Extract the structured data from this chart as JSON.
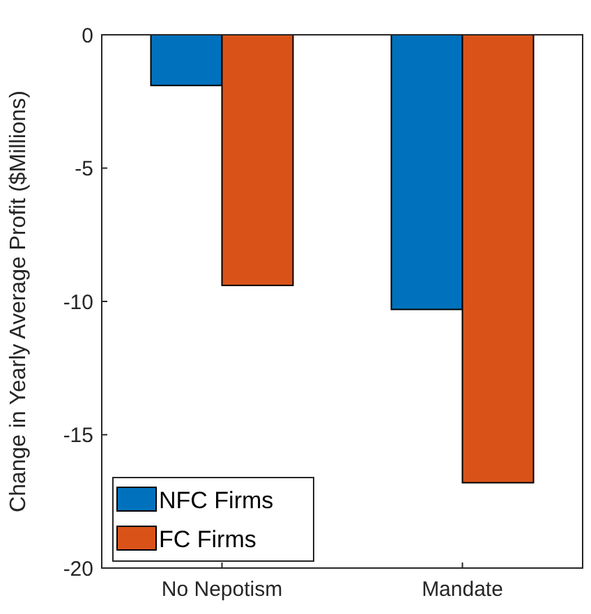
{
  "chart_data": {
    "type": "bar",
    "ylabel": "Change in Yearly Average Profit ($Millions)",
    "categories": [
      "No Nepotism",
      "Mandate"
    ],
    "series": [
      {
        "name": "NFC Firms",
        "color": "#0072bd",
        "values": [
          -1.9,
          -10.3
        ]
      },
      {
        "name": "FC Firms",
        "color": "#d95319",
        "values": [
          -9.4,
          -16.8
        ]
      }
    ],
    "ylim": [
      -20,
      0
    ],
    "yticks": [
      -20,
      -15,
      -10,
      -5,
      0
    ],
    "grid": false,
    "legend": "bottom left"
  }
}
